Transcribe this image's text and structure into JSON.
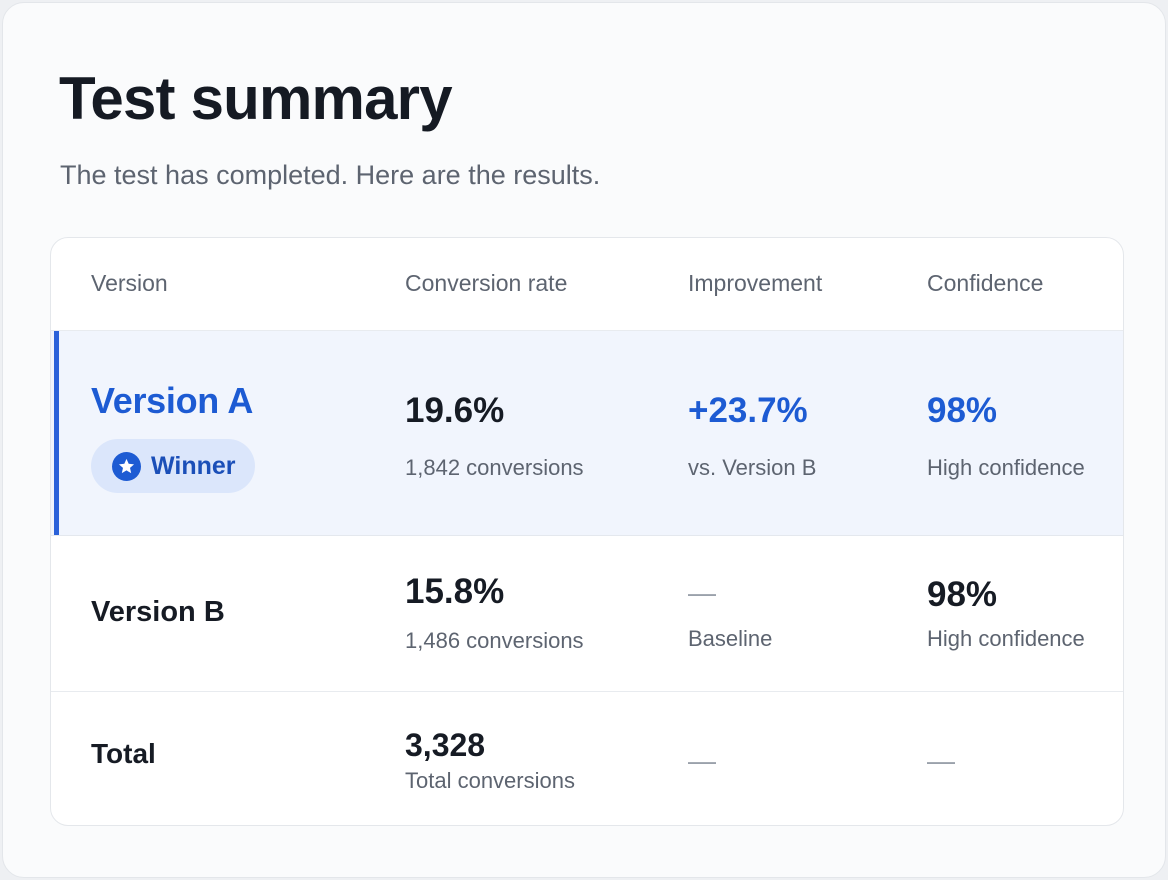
{
  "page": {
    "title": "Test summary",
    "subtitle": "The test has completed. Here are the results."
  },
  "table": {
    "headers": [
      "Version",
      "Conversion rate",
      "Improvement",
      "Confidence"
    ],
    "rows": [
      {
        "version": "Version A",
        "badge": "Winner",
        "badge_icon": "star-icon",
        "rate": "19.6%",
        "rate_detail": "1,842 conversions",
        "improvement": "+23.7%",
        "improvement_detail": "vs. Version B",
        "confidence": "98%",
        "confidence_detail": "High confidence",
        "highlighted": true
      },
      {
        "version": "Version B",
        "rate": "15.8%",
        "rate_detail": "1,486 conversions",
        "improvement": "—",
        "improvement_detail": "Baseline",
        "confidence": "98%",
        "confidence_detail": "High confidence",
        "highlighted": false
      }
    ],
    "total": {
      "label": "Total",
      "value": "3,328",
      "detail": "Total conversions",
      "improvement": "—",
      "confidence": "—"
    }
  },
  "colors": {
    "accent": "#1d5bd3",
    "highlight_bg": "#f1f5fd",
    "badge_bg": "#dbe6fb",
    "text_primary": "#161b24",
    "text_secondary": "#5d6470"
  }
}
